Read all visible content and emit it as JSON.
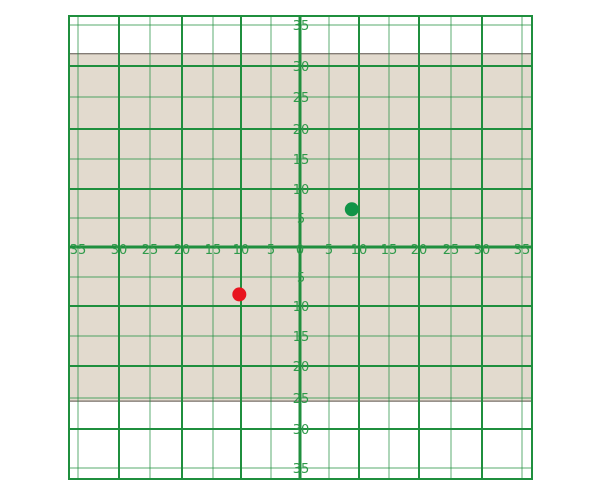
{
  "chart_data": {
    "type": "scatter",
    "title": "",
    "xlabel": "",
    "ylabel": "",
    "xlim": [
      -35,
      35
    ],
    "ylim": [
      -35,
      35
    ],
    "grid": true,
    "x_ticks": [
      -35,
      -30,
      -25,
      -20,
      -15,
      -10,
      -5,
      0,
      5,
      10,
      15,
      20,
      25,
      30,
      35
    ],
    "y_ticks": [
      35,
      30,
      25,
      20,
      15,
      10,
      5,
      0,
      -5,
      -10,
      -15,
      -20,
      -25,
      -30,
      -35
    ],
    "x_tick_labels": [
      "35",
      "30",
      "25",
      "20",
      "15",
      "10",
      "5",
      "0",
      "5",
      "10",
      "15",
      "20",
      "25",
      "30",
      "35"
    ],
    "y_tick_labels": [
      "35",
      "30",
      "25",
      "20",
      "15",
      "10",
      "5",
      "0",
      "5",
      "10",
      "15",
      "20",
      "25",
      "30",
      "35"
    ],
    "shaded_region": {
      "y_range": [
        -25.5,
        31.5
      ],
      "color": "#e2dace"
    },
    "points": [
      {
        "x": 8.8,
        "y": 6.5,
        "color": "#0f9447"
      },
      {
        "x": -10.3,
        "y": -8.0,
        "color": "#e8141f"
      }
    ],
    "grid_color": "#1f8f3e"
  }
}
